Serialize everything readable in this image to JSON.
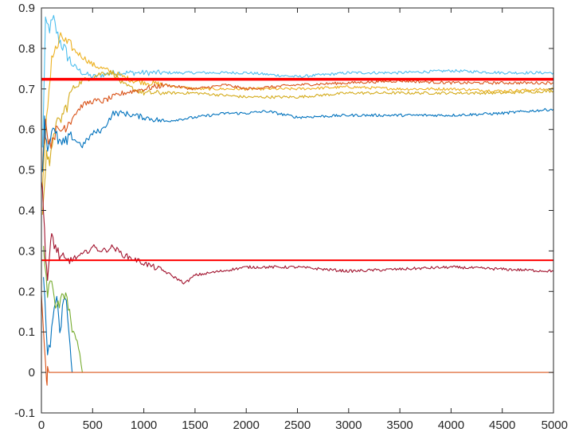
{
  "chart_data": {
    "type": "line",
    "title": "",
    "xlabel": "",
    "ylabel": "",
    "xlim": [
      0,
      5000
    ],
    "ylim": [
      -0.1,
      0.9
    ],
    "grid": false,
    "legend": "none",
    "x_ticks": [
      "0",
      "500",
      "1000",
      "1500",
      "2000",
      "2500",
      "3000",
      "3500",
      "4000",
      "4500",
      "5000"
    ],
    "y_ticks": [
      "-0.1",
      "0",
      "0.1",
      "0.2",
      "0.3",
      "0.4",
      "0.5",
      "0.6",
      "0.7",
      "0.8",
      "0.9"
    ],
    "reference_lines": [
      {
        "y": 0.724,
        "color": "#ff0000",
        "width": "thick"
      },
      {
        "y": 0.277,
        "color": "#ff0000",
        "width": "normal"
      }
    ],
    "series": [
      {
        "color": "#4dbeee",
        "points": [
          [
            10,
            0.55
          ],
          [
            40,
            0.86
          ],
          [
            80,
            0.85
          ],
          [
            120,
            0.87
          ],
          [
            160,
            0.83
          ],
          [
            220,
            0.8
          ],
          [
            300,
            0.76
          ],
          [
            400,
            0.74
          ],
          [
            500,
            0.73
          ],
          [
            700,
            0.74
          ],
          [
            1000,
            0.74
          ],
          [
            1500,
            0.74
          ],
          [
            2000,
            0.74
          ],
          [
            2500,
            0.73
          ],
          [
            3000,
            0.74
          ],
          [
            3500,
            0.74
          ],
          [
            4000,
            0.745
          ],
          [
            4500,
            0.74
          ],
          [
            5000,
            0.74
          ]
        ]
      },
      {
        "color": "#edb120",
        "points": [
          [
            10,
            0.45
          ],
          [
            50,
            0.62
          ],
          [
            100,
            0.78
          ],
          [
            150,
            0.8
          ],
          [
            200,
            0.83
          ],
          [
            250,
            0.81
          ],
          [
            300,
            0.8
          ],
          [
            400,
            0.78
          ],
          [
            500,
            0.76
          ],
          [
            700,
            0.74
          ],
          [
            900,
            0.72
          ],
          [
            1200,
            0.71
          ],
          [
            1500,
            0.7
          ],
          [
            2000,
            0.7
          ],
          [
            2500,
            0.7
          ],
          [
            3000,
            0.705
          ],
          [
            3500,
            0.7
          ],
          [
            4000,
            0.7
          ],
          [
            4500,
            0.695
          ],
          [
            5000,
            0.7
          ]
        ]
      },
      {
        "color": "#d4ab1b",
        "points": [
          [
            10,
            0.4
          ],
          [
            50,
            0.55
          ],
          [
            80,
            0.5
          ],
          [
            120,
            0.6
          ],
          [
            180,
            0.62
          ],
          [
            250,
            0.66
          ],
          [
            300,
            0.7
          ],
          [
            400,
            0.72
          ],
          [
            500,
            0.73
          ],
          [
            600,
            0.74
          ],
          [
            700,
            0.74
          ],
          [
            800,
            0.71
          ],
          [
            900,
            0.7
          ],
          [
            1000,
            0.69
          ],
          [
            1200,
            0.69
          ],
          [
            1500,
            0.69
          ],
          [
            2000,
            0.68
          ],
          [
            2500,
            0.68
          ],
          [
            3000,
            0.69
          ],
          [
            3500,
            0.69
          ],
          [
            4000,
            0.69
          ],
          [
            4500,
            0.69
          ],
          [
            5000,
            0.695
          ]
        ]
      },
      {
        "color": "#d95319",
        "points": [
          [
            10,
            0.52
          ],
          [
            40,
            0.62
          ],
          [
            80,
            0.56
          ],
          [
            120,
            0.59
          ],
          [
            200,
            0.6
          ],
          [
            300,
            0.63
          ],
          [
            400,
            0.66
          ],
          [
            500,
            0.67
          ],
          [
            600,
            0.67
          ],
          [
            800,
            0.69
          ],
          [
            1000,
            0.7
          ],
          [
            1200,
            0.71
          ],
          [
            1500,
            0.7
          ],
          [
            1800,
            0.71
          ],
          [
            2000,
            0.7
          ],
          [
            2500,
            0.71
          ],
          [
            3000,
            0.715
          ],
          [
            3500,
            0.72
          ],
          [
            4000,
            0.715
          ],
          [
            4500,
            0.715
          ],
          [
            5000,
            0.715
          ]
        ]
      },
      {
        "color": "#0072bd",
        "points": [
          [
            10,
            0.5
          ],
          [
            30,
            0.62
          ],
          [
            60,
            0.55
          ],
          [
            100,
            0.6
          ],
          [
            150,
            0.58
          ],
          [
            200,
            0.56
          ],
          [
            300,
            0.58
          ],
          [
            400,
            0.56
          ],
          [
            500,
            0.59
          ],
          [
            600,
            0.6
          ],
          [
            700,
            0.64
          ],
          [
            800,
            0.64
          ],
          [
            1000,
            0.63
          ],
          [
            1200,
            0.62
          ],
          [
            1500,
            0.63
          ],
          [
            1800,
            0.64
          ],
          [
            2000,
            0.64
          ],
          [
            2200,
            0.645
          ],
          [
            2500,
            0.63
          ],
          [
            3000,
            0.635
          ],
          [
            3500,
            0.635
          ],
          [
            4000,
            0.635
          ],
          [
            4500,
            0.64
          ],
          [
            5000,
            0.65
          ]
        ]
      },
      {
        "color": "#a2142f",
        "points": [
          [
            0,
            0.48
          ],
          [
            20,
            0.4
          ],
          [
            40,
            0.3
          ],
          [
            60,
            0.23
          ],
          [
            80,
            0.28
          ],
          [
            100,
            0.34
          ],
          [
            150,
            0.3
          ],
          [
            200,
            0.28
          ],
          [
            250,
            0.27
          ],
          [
            300,
            0.28
          ],
          [
            400,
            0.29
          ],
          [
            500,
            0.31
          ],
          [
            600,
            0.3
          ],
          [
            700,
            0.31
          ],
          [
            800,
            0.29
          ],
          [
            1000,
            0.27
          ],
          [
            1200,
            0.25
          ],
          [
            1400,
            0.22
          ],
          [
            1500,
            0.24
          ],
          [
            2000,
            0.26
          ],
          [
            2500,
            0.26
          ],
          [
            3000,
            0.25
          ],
          [
            3500,
            0.255
          ],
          [
            4000,
            0.26
          ],
          [
            4500,
            0.255
          ],
          [
            5000,
            0.25
          ]
        ]
      },
      {
        "color": "#0072bd",
        "points": [
          [
            20,
            0.25
          ],
          [
            60,
            0.03
          ],
          [
            100,
            0.1
          ],
          [
            150,
            0.19
          ],
          [
            180,
            0.1
          ],
          [
            230,
            0.2
          ],
          [
            270,
            0.1
          ],
          [
            300,
            0.0
          ]
        ]
      },
      {
        "color": "#77ac30",
        "points": [
          [
            20,
            0.3
          ],
          [
            60,
            0.2
          ],
          [
            100,
            0.22
          ],
          [
            150,
            0.15
          ],
          [
            200,
            0.2
          ],
          [
            250,
            0.19
          ],
          [
            300,
            0.1
          ],
          [
            350,
            0.08
          ],
          [
            400,
            0.0
          ]
        ]
      },
      {
        "color": "#d95319",
        "points": [
          [
            0,
            0.2
          ],
          [
            30,
            0.05
          ],
          [
            50,
            -0.03
          ],
          [
            60,
            0.0
          ],
          [
            5000,
            0.0
          ]
        ]
      }
    ]
  }
}
